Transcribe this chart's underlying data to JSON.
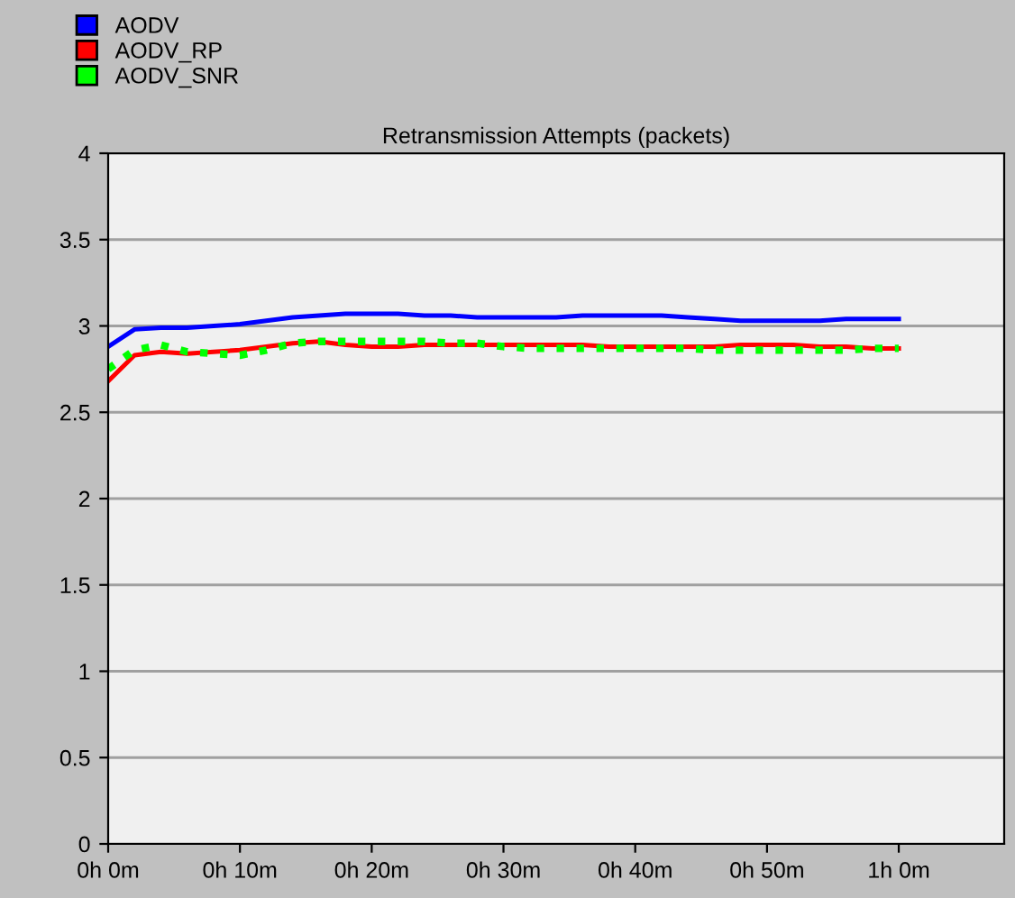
{
  "chart_data": {
    "type": "line",
    "title": "Retransmission Attempts (packets)",
    "ylim": [
      0,
      4
    ],
    "categories": [
      "0h 0m",
      null,
      null,
      null,
      null,
      "0h 10m",
      null,
      null,
      null,
      null,
      "0h 20m",
      null,
      null,
      null,
      null,
      "0h 30m",
      null,
      null,
      null,
      null,
      "0h 40m",
      null,
      null,
      null,
      null,
      "0h 50m",
      null,
      null,
      null,
      null,
      "1h 0m",
      null,
      null,
      null,
      null
    ],
    "yticks": [
      0,
      0.5,
      1,
      1.5,
      2,
      2.5,
      3,
      3.5,
      4
    ],
    "grid": "y",
    "legend": "top left",
    "series": [
      {
        "name": "AODV",
        "color": "#0000ff",
        "line_style": "solid",
        "values": [
          2.88,
          2.98,
          2.99,
          2.99,
          3.0,
          3.01,
          3.03,
          3.05,
          3.06,
          3.07,
          3.07,
          3.07,
          3.06,
          3.06,
          3.05,
          3.05,
          3.05,
          3.05,
          3.06,
          3.06,
          3.06,
          3.06,
          3.05,
          3.04,
          3.03,
          3.03,
          3.03,
          3.03,
          3.04,
          3.04,
          3.04,
          null,
          null,
          null,
          null
        ]
      },
      {
        "name": "AODV_RP",
        "color": "#ff0000",
        "line_style": "solid",
        "values": [
          2.68,
          2.83,
          2.85,
          2.84,
          2.85,
          2.86,
          2.88,
          2.9,
          2.91,
          2.89,
          2.88,
          2.88,
          2.89,
          2.89,
          2.89,
          2.89,
          2.89,
          2.89,
          2.89,
          2.88,
          2.88,
          2.88,
          2.88,
          2.88,
          2.89,
          2.89,
          2.89,
          2.88,
          2.88,
          2.87,
          2.87,
          null,
          null,
          null,
          null
        ]
      },
      {
        "name": "AODV_SNR",
        "color": "#00ff00",
        "line_style": "dotted",
        "values": [
          2.75,
          2.86,
          2.89,
          2.85,
          2.84,
          2.83,
          2.86,
          2.9,
          2.91,
          2.91,
          2.91,
          2.91,
          2.91,
          2.9,
          2.9,
          2.88,
          2.87,
          2.87,
          2.87,
          2.87,
          2.87,
          2.87,
          2.87,
          2.86,
          2.86,
          2.86,
          2.86,
          2.86,
          2.86,
          2.87,
          2.87,
          null,
          null,
          null,
          null
        ]
      }
    ]
  }
}
